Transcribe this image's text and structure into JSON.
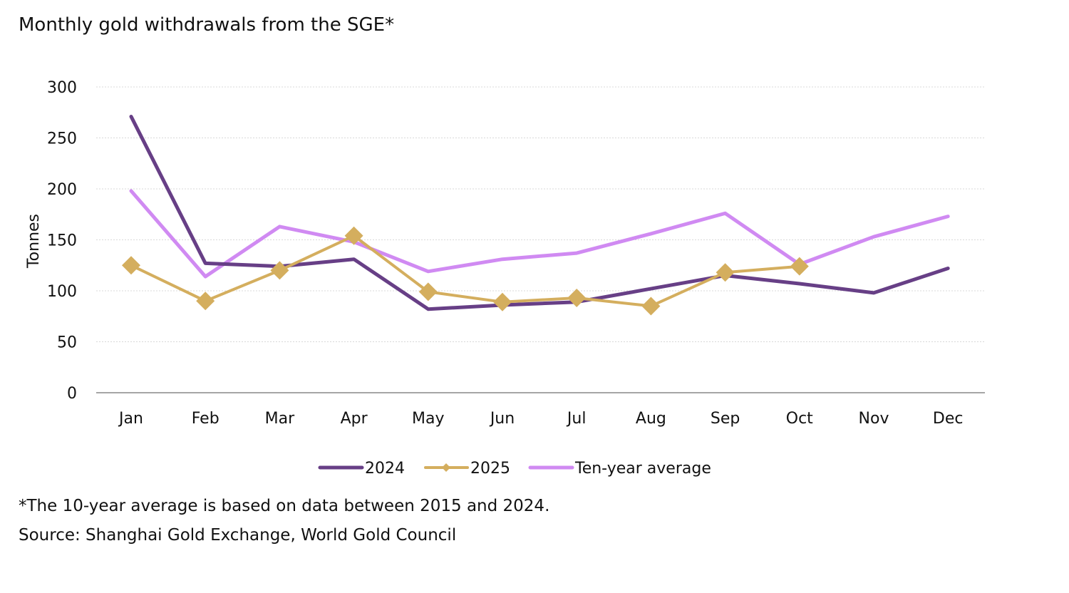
{
  "title": "Monthly gold withdrawals from the SGE*",
  "footnote": "*The 10-year average is based on data between 2015 and 2024.",
  "source": "Source: Shanghai Gold Exchange, World Gold Council",
  "colors": {
    "series_2024": "#673f86",
    "series_2025": "#d4ae5e",
    "series_avg": "#d08af2",
    "grid": "#d8d8d8",
    "axis": "#a6a6a6",
    "text": "#111111"
  },
  "chart_data": {
    "type": "line",
    "title": "Monthly gold withdrawals from the SGE*",
    "xlabel": "",
    "ylabel": "Tonnes",
    "categories": [
      "Jan",
      "Feb",
      "Mar",
      "Apr",
      "May",
      "Jun",
      "Jul",
      "Aug",
      "Sep",
      "Oct",
      "Nov",
      "Dec"
    ],
    "ylim": [
      0,
      300
    ],
    "yticks": [
      0,
      50,
      100,
      150,
      200,
      250,
      300
    ],
    "grid": true,
    "legend": "bottom",
    "series": [
      {
        "name": "2024",
        "color": "#673f86",
        "marker": "none",
        "values": [
          271,
          127,
          124,
          131,
          82,
          86,
          89,
          102,
          115,
          107,
          98,
          122
        ]
      },
      {
        "name": "2025",
        "color": "#d4ae5e",
        "marker": "diamond",
        "values": [
          125,
          90,
          120,
          154,
          99,
          89,
          93,
          85,
          118,
          124,
          null,
          null
        ]
      },
      {
        "name": "Ten-year average",
        "color": "#d08af2",
        "marker": "none",
        "values": [
          198,
          114,
          163,
          148,
          119,
          131,
          137,
          156,
          176,
          126,
          153,
          173
        ]
      }
    ]
  }
}
